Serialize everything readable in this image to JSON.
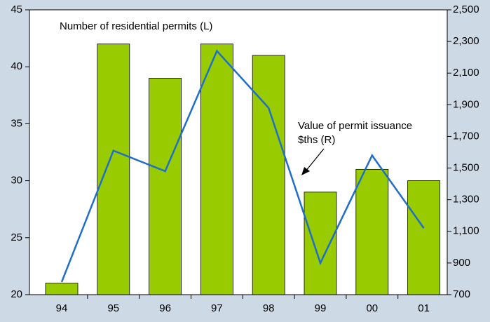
{
  "chart_data": {
    "type": "bar_line",
    "categories": [
      "94",
      "95",
      "96",
      "97",
      "98",
      "99",
      "00",
      "01"
    ],
    "series": [
      {
        "name": "Number of residential permits (L)",
        "type": "bar",
        "color": "#99cc00",
        "values": [
          21,
          42,
          39,
          42,
          41,
          29,
          31,
          30
        ]
      },
      {
        "name": "Value of permit issuance $ths (R)",
        "type": "line",
        "axis": "y2",
        "color": "#1f6fc8",
        "values": [
          780,
          1610,
          1480,
          2240,
          1880,
          900,
          1580,
          1120
        ]
      }
    ],
    "annotations": [
      {
        "lines": [
          "Number of residential permits (L)"
        ]
      },
      {
        "lines": [
          "Value of permit issuance",
          "$ths (R)"
        ]
      }
    ],
    "ylim": [
      20,
      45
    ],
    "yticks": [
      20,
      25,
      30,
      35,
      40,
      45
    ],
    "y2lim": [
      700,
      2500
    ],
    "y2ticks": [
      700,
      900,
      {
        "value": 1100,
        "label": "1,100"
      },
      {
        "value": 1300,
        "label": "1,300"
      },
      {
        "value": 1500,
        "label": "1,500"
      },
      {
        "value": 1700,
        "label": "1,700"
      },
      {
        "value": 1900,
        "label": "1,900"
      },
      {
        "value": 2100,
        "label": "2,100"
      },
      {
        "value": 2300,
        "label": "2,300"
      },
      {
        "value": 2500,
        "label": "2,500"
      }
    ],
    "grid": false
  }
}
